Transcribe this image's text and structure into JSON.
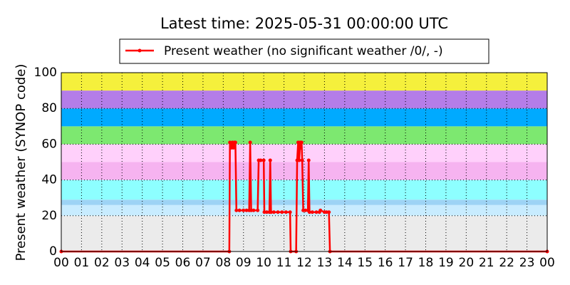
{
  "chart_data": {
    "type": "line",
    "title": "Latest time: 2025-05-31 00:00:00 UTC",
    "ylabel": "Present weather (SYNOP code)",
    "xlim": [
      0,
      24
    ],
    "ylim": [
      0,
      100
    ],
    "yticks": [
      0,
      20,
      40,
      60,
      80,
      100
    ],
    "xticks": [
      {
        "value": 0,
        "label": "00"
      },
      {
        "value": 1,
        "label": "01"
      },
      {
        "value": 2,
        "label": "02"
      },
      {
        "value": 3,
        "label": "03"
      },
      {
        "value": 4,
        "label": "04"
      },
      {
        "value": 5,
        "label": "05"
      },
      {
        "value": 6,
        "label": "06"
      },
      {
        "value": 7,
        "label": "07"
      },
      {
        "value": 8,
        "label": "08"
      },
      {
        "value": 9,
        "label": "09"
      },
      {
        "value": 10,
        "label": "10"
      },
      {
        "value": 11,
        "label": "11"
      },
      {
        "value": 12,
        "label": "12"
      },
      {
        "value": 13,
        "label": "13"
      },
      {
        "value": 14,
        "label": "14"
      },
      {
        "value": 15,
        "label": "15"
      },
      {
        "value": 16,
        "label": "16"
      },
      {
        "value": 17,
        "label": "17"
      },
      {
        "value": 18,
        "label": "18"
      },
      {
        "value": 19,
        "label": "19"
      },
      {
        "value": 20,
        "label": "20"
      },
      {
        "value": 21,
        "label": "21"
      },
      {
        "value": 22,
        "label": "22"
      },
      {
        "value": 23,
        "label": "23"
      },
      {
        "value": 24,
        "label": "00"
      }
    ],
    "grid": true,
    "legend": "top",
    "bands": [
      {
        "from": 0,
        "to": 20,
        "color": "#ebebeb"
      },
      {
        "from": 20,
        "to": 26,
        "color": "#c8ecff"
      },
      {
        "from": 26,
        "to": 29,
        "color": "#9dd3f5"
      },
      {
        "from": 29,
        "to": 40,
        "color": "#8dffff"
      },
      {
        "from": 40,
        "to": 50,
        "color": "#f6b3f0"
      },
      {
        "from": 50,
        "to": 60,
        "color": "#ffd0fb"
      },
      {
        "from": 60,
        "to": 70,
        "color": "#7de870"
      },
      {
        "from": 70,
        "to": 80,
        "color": "#00aaff"
      },
      {
        "from": 80,
        "to": 90,
        "color": "#b47de8"
      },
      {
        "from": 90,
        "to": 100,
        "color": "#f5f03c"
      }
    ],
    "x": [
      0,
      8.3,
      8.33,
      8.4,
      8.45,
      8.5,
      8.55,
      8.6,
      8.65,
      8.8,
      9.0,
      9.15,
      9.28,
      9.33,
      9.38,
      9.5,
      9.7,
      9.75,
      9.85,
      10.0,
      10.03,
      10.15,
      10.28,
      10.32,
      10.36,
      10.5,
      10.7,
      10.9,
      11.1,
      11.3,
      11.33,
      11.6,
      11.65,
      11.7,
      11.75,
      11.8,
      11.83,
      11.87,
      11.9,
      11.95,
      12.05,
      12.18,
      12.22,
      12.26,
      12.4,
      12.6,
      12.75,
      12.8,
      13.0,
      13.1,
      13.22,
      13.27,
      24
    ],
    "series": [
      {
        "name": "Present weather (no significant weather /0/, -)",
        "color": "#ff0000",
        "values": [
          0,
          0,
          61,
          58,
          61,
          58,
          61,
          61,
          23,
          23,
          23,
          23,
          23,
          61,
          23,
          23,
          23,
          51,
          51,
          51,
          22,
          22,
          22,
          51,
          22,
          22,
          22,
          22,
          22,
          22,
          0,
          0,
          51,
          61,
          51,
          61,
          58,
          61,
          51,
          23,
          23,
          23,
          51,
          22,
          22,
          22,
          22,
          23,
          22,
          22,
          22,
          0,
          0
        ]
      }
    ]
  }
}
